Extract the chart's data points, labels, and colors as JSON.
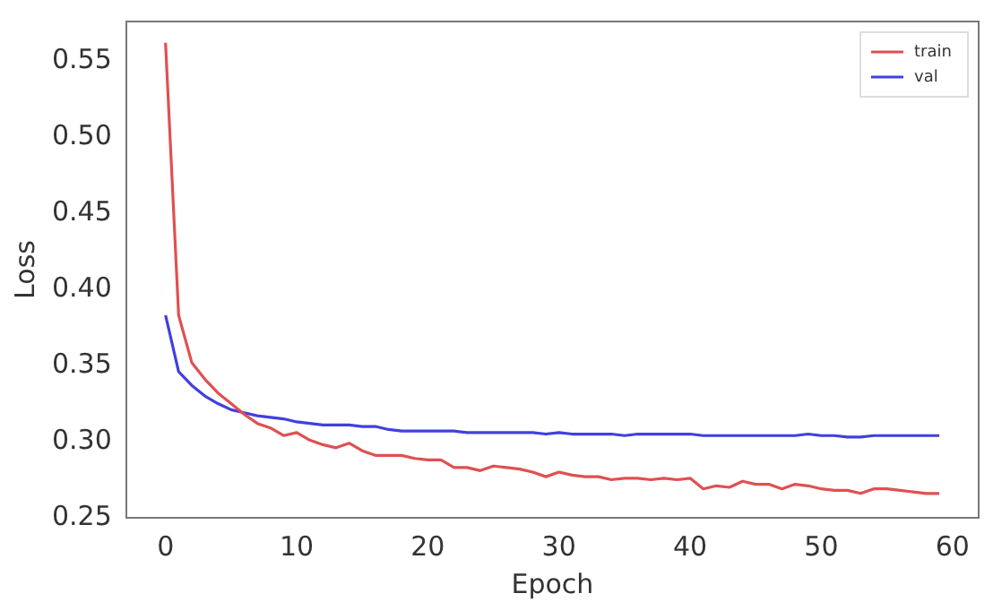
{
  "chart_data": {
    "type": "line",
    "xlabel": "Epoch",
    "ylabel": "Loss",
    "x": [
      0,
      1,
      2,
      3,
      4,
      5,
      6,
      7,
      8,
      9,
      10,
      11,
      12,
      13,
      14,
      15,
      16,
      17,
      18,
      19,
      20,
      21,
      22,
      23,
      24,
      25,
      26,
      27,
      28,
      29,
      30,
      31,
      32,
      33,
      34,
      35,
      36,
      37,
      38,
      39,
      40,
      41,
      42,
      43,
      44,
      45,
      46,
      47,
      48,
      49,
      50,
      51,
      52,
      53,
      54,
      55,
      56,
      57,
      58,
      59
    ],
    "series": [
      {
        "name": "train",
        "color": "#e05050",
        "values": [
          0.562,
          0.383,
          0.352,
          0.341,
          0.332,
          0.325,
          0.318,
          0.312,
          0.309,
          0.304,
          0.306,
          0.301,
          0.298,
          0.296,
          0.299,
          0.294,
          0.291,
          0.291,
          0.291,
          0.289,
          0.288,
          0.288,
          0.283,
          0.283,
          0.281,
          0.284,
          0.283,
          0.282,
          0.28,
          0.277,
          0.28,
          0.278,
          0.277,
          0.277,
          0.275,
          0.276,
          0.276,
          0.275,
          0.276,
          0.275,
          0.276,
          0.269,
          0.271,
          0.27,
          0.274,
          0.272,
          0.272,
          0.269,
          0.272,
          0.271,
          0.269,
          0.268,
          0.268,
          0.266,
          0.269,
          0.269,
          0.268,
          0.267,
          0.266,
          0.266
        ]
      },
      {
        "name": "val",
        "color": "#4040dd",
        "values": [
          0.383,
          0.346,
          0.337,
          0.33,
          0.325,
          0.321,
          0.319,
          0.317,
          0.316,
          0.315,
          0.313,
          0.312,
          0.311,
          0.311,
          0.311,
          0.31,
          0.31,
          0.308,
          0.307,
          0.307,
          0.307,
          0.307,
          0.307,
          0.306,
          0.306,
          0.306,
          0.306,
          0.306,
          0.306,
          0.305,
          0.306,
          0.305,
          0.305,
          0.305,
          0.305,
          0.304,
          0.305,
          0.305,
          0.305,
          0.305,
          0.305,
          0.304,
          0.304,
          0.304,
          0.304,
          0.304,
          0.304,
          0.304,
          0.304,
          0.305,
          0.304,
          0.304,
          0.303,
          0.303,
          0.304,
          0.304,
          0.304,
          0.304,
          0.304,
          0.304
        ]
      }
    ],
    "xlim": [
      -3,
      62
    ],
    "xticks": [
      0,
      10,
      20,
      30,
      40,
      50,
      60
    ],
    "ylim": [
      0.25,
      0.576
    ],
    "yticks": [
      0.25,
      {
        "value": 0.3,
        "label": "0.30"
      },
      0.35,
      {
        "value": 0.4,
        "label": "0.40"
      },
      0.45,
      {
        "value": 0.5,
        "label": "0.50"
      },
      0.55
    ],
    "grid": false,
    "legend": "top right",
    "marker": "none",
    "line_style": "solid"
  }
}
